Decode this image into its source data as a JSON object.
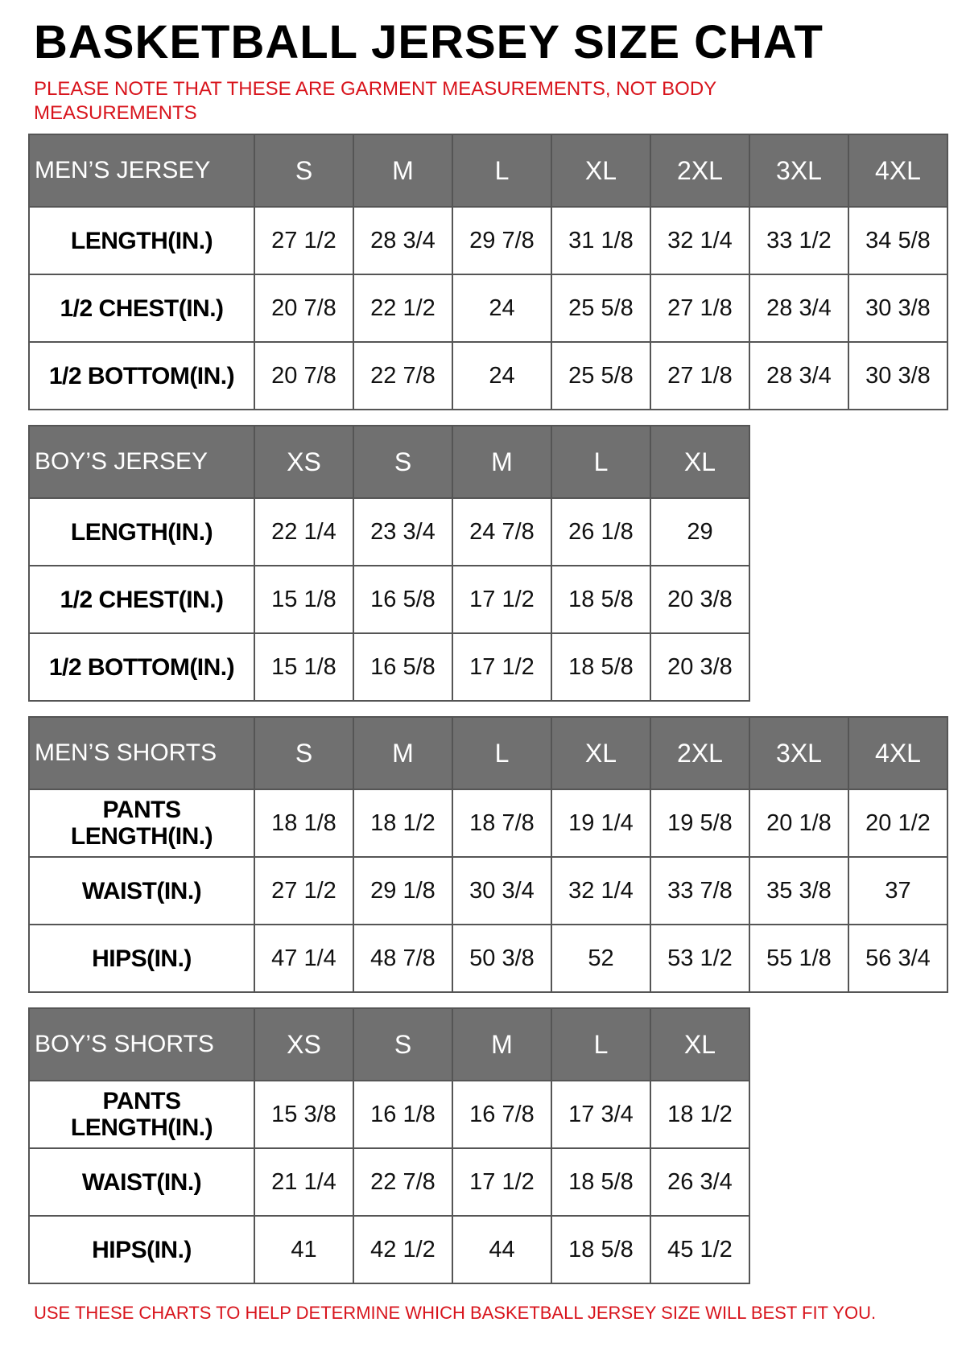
{
  "title": "BASKETBALL JERSEY SIZE CHAT",
  "note": "PLEASE NOTE THAT THESE ARE GARMENT MEASUREMENTS, NOT BODY MEASUREMENTS",
  "footer": "USE THESE CHARTS TO HELP DETERMINE WHICH BASKETBALL JERSEY SIZE WILL BEST FIT YOU.",
  "colors": {
    "header_bg": "#707070",
    "note_red": "#d8141c"
  },
  "tables": [
    {
      "heading": "MEN’S JERSEY",
      "sizes": [
        "S",
        "M",
        "L",
        "XL",
        "2XL",
        "3XL",
        "4XL"
      ],
      "rows": [
        {
          "label": "LENGTH(IN.)",
          "values": [
            "27 1/2",
            "28 3/4",
            "29 7/8",
            "31 1/8",
            "32 1/4",
            "33 1/2",
            "34 5/8"
          ]
        },
        {
          "label": "1/2 CHEST(IN.)",
          "values": [
            "20 7/8",
            "22 1/2",
            "24",
            "25 5/8",
            "27 1/8",
            "28 3/4",
            "30 3/8"
          ]
        },
        {
          "label": "1/2 BOTTOM(IN.)",
          "values": [
            "20 7/8",
            "22 7/8",
            "24",
            "25 5/8",
            "27 1/8",
            "28 3/4",
            "30 3/8"
          ]
        }
      ]
    },
    {
      "heading": "BOY’S JERSEY",
      "sizes": [
        "XS",
        "S",
        "M",
        "L",
        "XL"
      ],
      "rows": [
        {
          "label": "LENGTH(IN.)",
          "values": [
            "22 1/4",
            "23 3/4",
            "24 7/8",
            "26 1/8",
            "29"
          ]
        },
        {
          "label": "1/2 CHEST(IN.)",
          "values": [
            "15 1/8",
            "16 5/8",
            "17 1/2",
            "18 5/8",
            "20 3/8"
          ]
        },
        {
          "label": "1/2 BOTTOM(IN.)",
          "values": [
            "15 1/8",
            "16 5/8",
            "17 1/2",
            "18 5/8",
            "20 3/8"
          ]
        }
      ]
    },
    {
      "heading": "MEN’S SHORTS",
      "sizes": [
        "S",
        "M",
        "L",
        "XL",
        "2XL",
        "3XL",
        "4XL"
      ],
      "rows": [
        {
          "label": "PANTS LENGTH(IN.)",
          "values": [
            "18 1/8",
            "18 1/2",
            "18 7/8",
            "19 1/4",
            "19 5/8",
            "20 1/8",
            "20 1/2"
          ]
        },
        {
          "label": "WAIST(IN.)",
          "values": [
            "27 1/2",
            "29 1/8",
            "30 3/4",
            "32 1/4",
            "33 7/8",
            "35 3/8",
            "37"
          ]
        },
        {
          "label": "HIPS(IN.)",
          "values": [
            "47 1/4",
            "48 7/8",
            "50 3/8",
            "52",
            "53 1/2",
            "55 1/8",
            "56 3/4"
          ]
        }
      ]
    },
    {
      "heading": "BOY’S SHORTS",
      "sizes": [
        "XS",
        "S",
        "M",
        "L",
        "XL"
      ],
      "rows": [
        {
          "label": "PANTS LENGTH(IN.)",
          "values": [
            "15 3/8",
            "16 1/8",
            "16 7/8",
            "17 3/4",
            "18 1/2"
          ]
        },
        {
          "label": "WAIST(IN.)",
          "values": [
            "21 1/4",
            "22 7/8",
            "17 1/2",
            "18 5/8",
            "26 3/4"
          ]
        },
        {
          "label": "HIPS(IN.)",
          "values": [
            "41",
            "42 1/2",
            "44",
            "18 5/8",
            "45 1/2"
          ]
        }
      ]
    }
  ]
}
